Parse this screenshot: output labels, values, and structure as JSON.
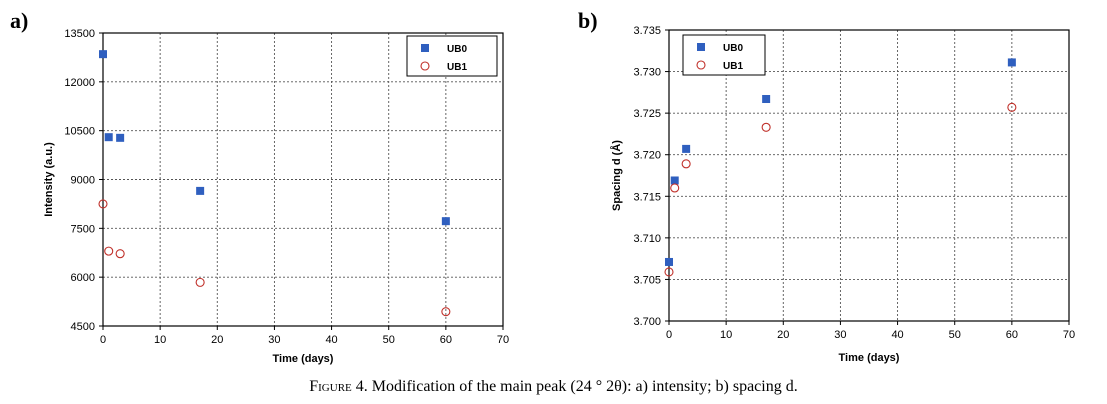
{
  "chart_data": [
    {
      "type": "scatter",
      "panel_label": "a)",
      "xlabel": "Time (days)",
      "ylabel": "Intensity (a.u.)",
      "xlim": [
        0,
        70
      ],
      "ylim": [
        4500,
        13500
      ],
      "xticks": [
        "0",
        "10",
        "20",
        "30",
        "40",
        "50",
        "60",
        "70"
      ],
      "yticks": [
        "4500",
        "6000",
        "7500",
        "9000",
        "10500",
        "12000",
        "13500"
      ],
      "grid": true,
      "legend_position": "top-right",
      "series": [
        {
          "name": "UB0",
          "marker": "filled-square",
          "color": "#2f5fbf",
          "x": [
            0,
            1,
            3,
            17,
            60
          ],
          "y": [
            12850,
            10300,
            10280,
            8650,
            7720
          ]
        },
        {
          "name": "UB1",
          "marker": "open-circle",
          "color": "#c0302a",
          "x": [
            0,
            1,
            3,
            17,
            60
          ],
          "y": [
            8250,
            6800,
            6720,
            5840,
            4940
          ]
        }
      ]
    },
    {
      "type": "scatter",
      "panel_label": "b)",
      "xlabel": "Time (days)",
      "ylabel": "Spacing d (Å)",
      "xlim": [
        0,
        70
      ],
      "ylim": [
        3.7,
        3.735
      ],
      "xticks": [
        "0",
        "10",
        "20",
        "30",
        "40",
        "50",
        "60",
        "70"
      ],
      "yticks": [
        "3.700",
        "3.705",
        "3.710",
        "3.715",
        "3.720",
        "3.725",
        "3.730",
        "3.735"
      ],
      "grid": true,
      "legend_position": "top-left",
      "series": [
        {
          "name": "UB0",
          "marker": "filled-square",
          "color": "#2f5fbf",
          "x": [
            0,
            1,
            3,
            17,
            60
          ],
          "y": [
            3.7071,
            3.7169,
            3.7207,
            3.7267,
            3.7311
          ]
        },
        {
          "name": "UB1",
          "marker": "open-circle",
          "color": "#c0302a",
          "x": [
            0,
            1,
            3,
            17,
            60
          ],
          "y": [
            3.7059,
            3.716,
            3.7189,
            3.7233,
            3.7257
          ]
        }
      ]
    }
  ],
  "caption": {
    "figure_label": "Figure 4.",
    "text": " Modification of the main peak (24 ° 2θ): a) intensity; b) spacing d."
  }
}
